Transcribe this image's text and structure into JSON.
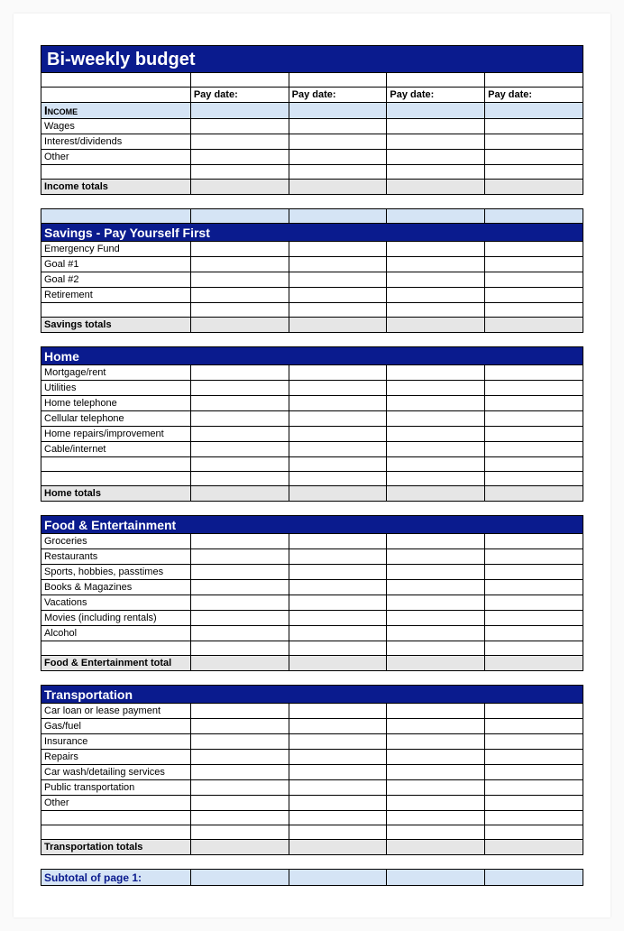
{
  "title": "Bi-weekly  budget",
  "paydate_label": "Pay date:",
  "colors": {
    "navy": "#0a1b8e",
    "lightblue": "#d5e4f5",
    "gray": "#e6e6e6",
    "border": "#000000",
    "white": "#ffffff"
  },
  "income": {
    "header": "Income",
    "rows": [
      "Wages",
      "Interest/dividends",
      "Other"
    ],
    "totals_label": "Income totals"
  },
  "savings": {
    "header": "Savings - Pay Yourself First",
    "rows": [
      "Emergency Fund",
      "Goal #1",
      "Goal #2",
      "Retirement"
    ],
    "totals_label": "Savings totals"
  },
  "home": {
    "header": "Home",
    "rows": [
      "Mortgage/rent",
      "Utilities",
      "Home telephone",
      "Cellular telephone",
      "Home repairs/improvement",
      "Cable/internet"
    ],
    "totals_label": "Home totals"
  },
  "food": {
    "header": "Food & Entertainment",
    "rows": [
      "Groceries",
      "Restaurants",
      "Sports, hobbies, passtimes",
      "Books & Magazines",
      "Vacations",
      "Movies (including rentals)",
      "Alcohol"
    ],
    "totals_label": "Food & Entertainment total"
  },
  "transport": {
    "header": "Transportation",
    "rows": [
      "Car loan or lease payment",
      "Gas/fuel",
      "Insurance",
      "Repairs",
      "Car wash/detailing services",
      "Public transportation",
      "Other"
    ],
    "totals_label": "Transportation totals"
  },
  "subtotal_label": "Subtotal of page 1:"
}
